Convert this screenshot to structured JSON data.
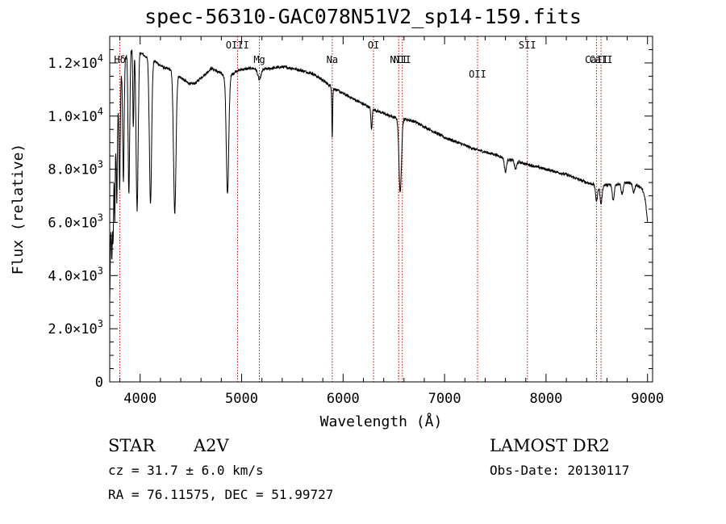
{
  "title": "spec-56310-GAC078N51V2_sp14-159.fits",
  "footer": {
    "object_type": "STAR",
    "subclass": "A2V",
    "survey": "LAMOST DR2",
    "cz": "cz = 31.7 ± 6.0 km/s",
    "obs_date": "Obs-Date: 20130117",
    "coords": "RA =  76.11575, DEC =  51.99727"
  },
  "chart_data": {
    "type": "line",
    "title": "spec-56310-GAC078N51V2_sp14-159.fits",
    "xlabel": "Wavelength (Å)",
    "ylabel": "Flux (relative)",
    "xlim": [
      3700,
      9050
    ],
    "ylim": [
      0,
      13000
    ],
    "x_ticks": [
      4000,
      5000,
      6000,
      7000,
      8000,
      9000
    ],
    "y_ticks": [
      {
        "value": 0,
        "mantissa": "0",
        "exp": ""
      },
      {
        "value": 2000,
        "mantissa": "2.0×10",
        "exp": "3"
      },
      {
        "value": 4000,
        "mantissa": "4.0×10",
        "exp": "3"
      },
      {
        "value": 6000,
        "mantissa": "6.0×10",
        "exp": "3"
      },
      {
        "value": 8000,
        "mantissa": "8.0×10",
        "exp": "3"
      },
      {
        "value": 10000,
        "mantissa": "1.0×10",
        "exp": "4"
      },
      {
        "value": 12000,
        "mantissa": "1.2×10",
        "exp": "4"
      }
    ],
    "line_markers": [
      {
        "label": "Hδ",
        "wavelength": 3800,
        "row": 1
      },
      {
        "label": "OIII",
        "wavelength": 4959,
        "row": 0
      },
      {
        "label": "Mg",
        "wavelength": 5175,
        "row": 1
      },
      {
        "label": "Na",
        "wavelength": 5893,
        "row": 1
      },
      {
        "label": "OI",
        "wavelength": 6300,
        "row": 0
      },
      {
        "label": "NII",
        "wavelength": 6548,
        "row": 1
      },
      {
        "label": "NII",
        "wavelength": 6584,
        "row": 1
      },
      {
        "label": "OII",
        "wavelength": 7325,
        "row": 2
      },
      {
        "label": "SII",
        "wavelength": 7816,
        "row": 0
      },
      {
        "label": "CaII",
        "wavelength": 8498,
        "row": 1
      },
      {
        "label": "CaII",
        "wavelength": 8542,
        "row": 1
      }
    ],
    "series": [
      {
        "continuum": [
          [
            3700,
            3000
          ],
          [
            3710,
            5500
          ],
          [
            3730,
            7200
          ],
          [
            3750,
            8600
          ],
          [
            3780,
            10300
          ],
          [
            3800,
            11200
          ],
          [
            3830,
            12000
          ],
          [
            3870,
            12400
          ],
          [
            3900,
            12500
          ],
          [
            3950,
            12500
          ],
          [
            4000,
            12400
          ],
          [
            4050,
            12250
          ],
          [
            4100,
            12150
          ],
          [
            4150,
            12050
          ],
          [
            4200,
            11900
          ],
          [
            4250,
            11800
          ],
          [
            4300,
            11750
          ],
          [
            4350,
            11600
          ],
          [
            4400,
            11450
          ],
          [
            4450,
            11300
          ],
          [
            4500,
            11200
          ],
          [
            4550,
            11250
          ],
          [
            4600,
            11450
          ],
          [
            4650,
            11600
          ],
          [
            4700,
            11800
          ],
          [
            4750,
            11700
          ],
          [
            4800,
            11600
          ],
          [
            4850,
            11450
          ],
          [
            4900,
            11550
          ],
          [
            4950,
            11700
          ],
          [
            5000,
            11750
          ],
          [
            5100,
            11800
          ],
          [
            5200,
            11750
          ],
          [
            5300,
            11800
          ],
          [
            5400,
            11850
          ],
          [
            5500,
            11800
          ],
          [
            5600,
            11700
          ],
          [
            5700,
            11600
          ],
          [
            5800,
            11350
          ],
          [
            5850,
            11200
          ],
          [
            5900,
            11050
          ],
          [
            6000,
            10850
          ],
          [
            6100,
            10650
          ],
          [
            6200,
            10450
          ],
          [
            6300,
            10250
          ],
          [
            6400,
            10100
          ],
          [
            6500,
            9950
          ],
          [
            6550,
            9900
          ],
          [
            6600,
            9900
          ],
          [
            6700,
            9800
          ],
          [
            6800,
            9600
          ],
          [
            6900,
            9400
          ],
          [
            7000,
            9200
          ],
          [
            7100,
            9050
          ],
          [
            7200,
            8900
          ],
          [
            7300,
            8750
          ],
          [
            7400,
            8650
          ],
          [
            7500,
            8550
          ],
          [
            7600,
            8400
          ],
          [
            7700,
            8300
          ],
          [
            7800,
            8200
          ],
          [
            7900,
            8100
          ],
          [
            8000,
            8000
          ],
          [
            8100,
            7900
          ],
          [
            8200,
            7800
          ],
          [
            8300,
            7650
          ],
          [
            8400,
            7500
          ],
          [
            8500,
            7400
          ],
          [
            8600,
            7400
          ],
          [
            8700,
            7450
          ],
          [
            8800,
            7500
          ],
          [
            8900,
            7400
          ],
          [
            8950,
            7250
          ],
          [
            8980,
            6800
          ],
          [
            9000,
            6000
          ]
        ],
        "absorption_lines": [
          {
            "center": 3722,
            "depth": 2000,
            "width": 4
          },
          {
            "center": 3734,
            "depth": 2200,
            "width": 4
          },
          {
            "center": 3750,
            "depth": 2500,
            "width": 4
          },
          {
            "center": 3770,
            "depth": 3000,
            "width": 5
          },
          {
            "center": 3798,
            "depth": 3800,
            "width": 6
          },
          {
            "center": 3835,
            "depth": 4500,
            "width": 7
          },
          {
            "center": 3889,
            "depth": 5400,
            "width": 8
          },
          {
            "center": 3933,
            "depth": 3000,
            "width": 5
          },
          {
            "center": 3970,
            "depth": 6000,
            "width": 10
          },
          {
            "center": 4102,
            "depth": 5400,
            "width": 11
          },
          {
            "center": 4341,
            "depth": 5300,
            "width": 12
          },
          {
            "center": 4861,
            "depth": 4400,
            "width": 12
          },
          {
            "center": 5175,
            "depth": 400,
            "width": 15
          },
          {
            "center": 5893,
            "depth": 1900,
            "width": 4
          },
          {
            "center": 6280,
            "depth": 800,
            "width": 6
          },
          {
            "center": 6563,
            "depth": 2800,
            "width": 12
          },
          {
            "center": 7600,
            "depth": 500,
            "width": 10
          },
          {
            "center": 7700,
            "depth": 300,
            "width": 10
          },
          {
            "center": 8498,
            "depth": 600,
            "width": 10
          },
          {
            "center": 8542,
            "depth": 700,
            "width": 10
          },
          {
            "center": 8662,
            "depth": 600,
            "width": 10
          },
          {
            "center": 8750,
            "depth": 400,
            "width": 10
          },
          {
            "center": 8863,
            "depth": 300,
            "width": 10
          }
        ]
      }
    ],
    "colors": {
      "spectrum": "#000000",
      "line_markers": "#cc0000",
      "axes": "#000000"
    }
  }
}
